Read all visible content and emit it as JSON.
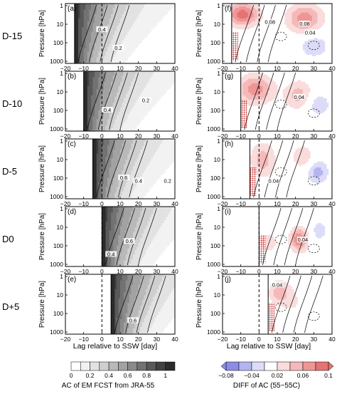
{
  "figure": {
    "row_labels": [
      "D-15",
      "D-10",
      "D-5",
      "D0",
      "D+5"
    ],
    "left_panel_letters": [
      "(a)",
      "(b)",
      "(c)",
      "(d)",
      "(e)"
    ],
    "right_panel_letters": [
      "(f)",
      "(g)",
      "(h)",
      "(i)",
      "(j)"
    ],
    "y_axis_label": "Pressure [hPa]",
    "x_axis_label": "Lag relative to SSW [day]",
    "left_colorbar_title": "AC of EM FCST from JRA-55",
    "right_colorbar_title": "DIFF of AC (55−55C)"
  },
  "chart_data": [
    {
      "type": "heatmap",
      "panel_column": "left",
      "x_range": [
        -20,
        40
      ],
      "x_ticks": [
        "−20",
        "−10",
        "0",
        "10",
        "20",
        "30",
        "40"
      ],
      "y_ticks": [
        "1",
        "10",
        "100",
        "1000"
      ],
      "y_scale": "log",
      "colorbar": {
        "labels": [
          "0",
          "0.2",
          "0.4",
          "0.6",
          "0.8",
          "1"
        ],
        "colors": [
          "#ffffff",
          "#f2f2f2",
          "#e2e2e2",
          "#cfcfcf",
          "#b9b9b9",
          "#a2a2a2",
          "#8a8a8a",
          "#727272",
          "#595959",
          "#414141",
          "#2b2b2b"
        ]
      },
      "panels": [
        {
          "letter": "(a)",
          "row": "D-15",
          "forecast_start_day": -15,
          "contour_labels": [
            {
              "text": "0.4",
              "x": 0,
              "p": 20
            },
            {
              "text": "0.2",
              "x": 9,
              "p": 200
            }
          ]
        },
        {
          "letter": "(b)",
          "row": "D-10",
          "forecast_start_day": -10,
          "contour_labels": [
            {
              "text": "0.4",
              "x": 3,
              "p": 100
            },
            {
              "text": "0.2",
              "x": 24,
              "p": 30
            }
          ]
        },
        {
          "letter": "(c)",
          "row": "D-5",
          "forecast_start_day": -5,
          "contour_labels": [
            {
              "text": "0.6",
              "x": 12,
              "p": 100
            },
            {
              "text": "0.4",
              "x": 20,
              "p": 150
            },
            {
              "text": "0.2",
              "x": 36,
              "p": 150
            }
          ]
        },
        {
          "letter": "(d)",
          "row": "D0",
          "forecast_start_day": 0,
          "contour_labels": [
            {
              "text": "0.6",
              "x": 15,
              "p": 60
            },
            {
              "text": "0.4",
              "x": 5,
              "p": 300
            }
          ]
        },
        {
          "letter": "(e)",
          "row": "D+5",
          "forecast_start_day": 5,
          "contour_labels": [
            {
              "text": "0.6",
              "x": 17,
              "p": 250
            }
          ]
        }
      ]
    },
    {
      "type": "heatmap",
      "panel_column": "right",
      "x_range": [
        -20,
        40
      ],
      "x_ticks": [
        "−20",
        "−10",
        "0",
        "10",
        "20",
        "30",
        "40"
      ],
      "y_ticks": [
        "1",
        "10",
        "100",
        "1000"
      ],
      "y_scale": "log",
      "colorbar": {
        "labels": [
          "−0.08",
          "−0.04",
          "0.02",
          "0.06",
          "0.1"
        ],
        "colors": [
          "#8c8ce6",
          "#b4b4f0",
          "#dcdcf8",
          "#ffffff",
          "#fadcdc",
          "#f5b9b9",
          "#ee9696",
          "#e67373"
        ]
      },
      "panels": [
        {
          "letter": "(f)",
          "row": "D-15",
          "forecast_start_day": -15,
          "contour_labels": [
            {
              "text": "0.08",
              "x": 6,
              "p": 8
            },
            {
              "text": "0.08",
              "x": 25,
              "p": 10
            },
            {
              "text": "0.04",
              "x": 28,
              "p": 30
            }
          ]
        },
        {
          "letter": "(g)",
          "row": "D-10",
          "forecast_start_day": -10,
          "contour_labels": [
            {
              "text": "0.04",
              "x": 22,
              "p": 20
            }
          ]
        },
        {
          "letter": "(h)",
          "row": "D-5",
          "forecast_start_day": -5,
          "contour_labels": [
            {
              "text": "0.04",
              "x": 8,
              "p": 150
            }
          ]
        },
        {
          "letter": "(i)",
          "row": "D0",
          "forecast_start_day": 0,
          "contour_labels": [
            {
              "text": "0.04",
              "x": 24,
              "p": 50
            }
          ]
        },
        {
          "letter": "(j)",
          "row": "D+5",
          "forecast_start_day": 5,
          "contour_labels": [
            {
              "text": "0.04",
              "x": 10,
              "p": 3
            }
          ]
        }
      ]
    }
  ]
}
